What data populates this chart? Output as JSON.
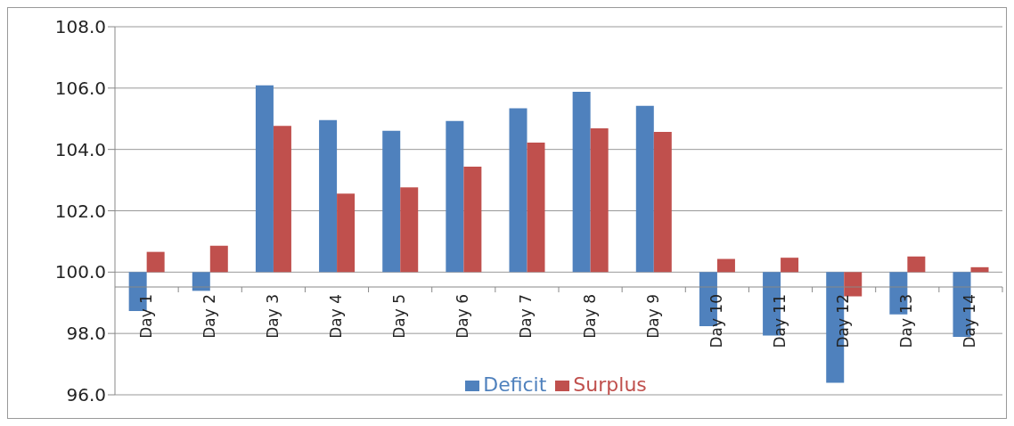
{
  "chart_data": {
    "type": "bar",
    "categories": [
      "Day 1",
      "Day 2",
      "Day 3",
      "Day 4",
      "Day 5",
      "Day 6",
      "Day 7",
      "Day 8",
      "Day 9",
      "Day 10",
      "Day 11",
      "Day 12",
      "Day 13",
      "Day 14"
    ],
    "series": [
      {
        "name": "Deficit",
        "color": "#4f81bd",
        "base": [
          100,
          100,
          100,
          100,
          100,
          100,
          100,
          100,
          100,
          100,
          100,
          100,
          100,
          100
        ],
        "values": [
          -1.27,
          -0.61,
          6.09,
          4.96,
          4.61,
          4.93,
          5.34,
          5.88,
          5.42,
          -1.76,
          -2.07,
          -3.61,
          -1.38,
          -2.11
        ]
      },
      {
        "name": "Surplus",
        "color": "#c0504d",
        "base": [
          100,
          100,
          100,
          100,
          100,
          100,
          100,
          100,
          100,
          100,
          100,
          100,
          100,
          100
        ],
        "values": [
          0.66,
          0.86,
          4.77,
          2.56,
          2.76,
          3.44,
          4.22,
          4.69,
          4.57,
          0.43,
          0.47,
          -0.79,
          0.51,
          0.16
        ]
      }
    ],
    "ylim": [
      96,
      108
    ],
    "yticks": [
      {
        "value": 96,
        "label": "96.0"
      },
      {
        "value": 98,
        "label": "98.0"
      },
      {
        "value": 100,
        "label": "100.0"
      },
      {
        "value": 102,
        "label": "102.0"
      },
      {
        "value": 104,
        "label": "104.0"
      },
      {
        "value": 106,
        "label": "106.0"
      },
      {
        "value": 108,
        "label": "108.0"
      }
    ],
    "grid": "y",
    "legend": "bottom"
  }
}
